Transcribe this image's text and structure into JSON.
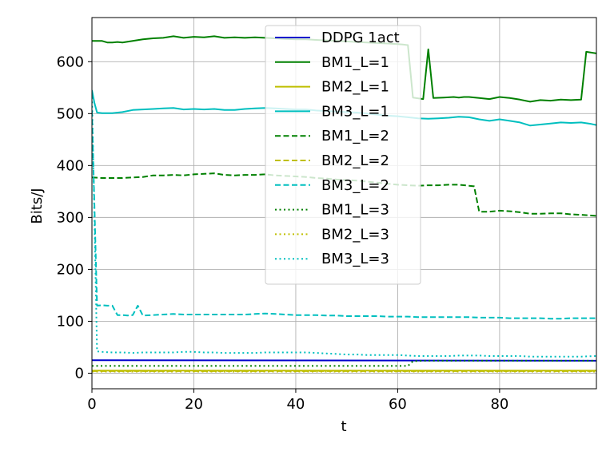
{
  "chart_data": {
    "type": "line",
    "title": "",
    "xlabel": "t",
    "ylabel": "Bits/J",
    "xlim": [
      0,
      99
    ],
    "ylim": [
      -30,
      685
    ],
    "xticks": [
      0,
      20,
      40,
      60,
      80
    ],
    "yticks": [
      0,
      100,
      200,
      300,
      400,
      500,
      600
    ],
    "grid": true,
    "legend_position": "upper center",
    "series": [
      {
        "name": "DDPG 1act",
        "color": "#0000cc",
        "style": "solid",
        "points": [
          [
            0,
            25
          ],
          [
            99,
            24
          ]
        ]
      },
      {
        "name": "BM1_L=1",
        "color": "#008000",
        "style": "solid",
        "points": [
          [
            0,
            640
          ],
          [
            1,
            640
          ],
          [
            2,
            640
          ],
          [
            3,
            637
          ],
          [
            4,
            637
          ],
          [
            5,
            638
          ],
          [
            6,
            637
          ],
          [
            8,
            640
          ],
          [
            10,
            643
          ],
          [
            12,
            645
          ],
          [
            14,
            646
          ],
          [
            16,
            649
          ],
          [
            18,
            646
          ],
          [
            20,
            648
          ],
          [
            22,
            647
          ],
          [
            24,
            649
          ],
          [
            26,
            646
          ],
          [
            28,
            647
          ],
          [
            30,
            646
          ],
          [
            32,
            647
          ],
          [
            34,
            646
          ],
          [
            36,
            645
          ],
          [
            38,
            644
          ],
          [
            40,
            643
          ],
          [
            42,
            643
          ],
          [
            44,
            642
          ],
          [
            46,
            641
          ],
          [
            48,
            640
          ],
          [
            50,
            639
          ],
          [
            52,
            638
          ],
          [
            54,
            637
          ],
          [
            56,
            636
          ],
          [
            58,
            635
          ],
          [
            60,
            634
          ],
          [
            61,
            633
          ],
          [
            62,
            632
          ],
          [
            63,
            531
          ],
          [
            65,
            528
          ],
          [
            66,
            624
          ],
          [
            67,
            530
          ],
          [
            69,
            531
          ],
          [
            71,
            532
          ],
          [
            72,
            531
          ],
          [
            73,
            532
          ],
          [
            74,
            532
          ],
          [
            76,
            530
          ],
          [
            78,
            528
          ],
          [
            80,
            532
          ],
          [
            82,
            530
          ],
          [
            84,
            527
          ],
          [
            86,
            523
          ],
          [
            88,
            526
          ],
          [
            90,
            525
          ],
          [
            92,
            527
          ],
          [
            94,
            526
          ],
          [
            96,
            527
          ],
          [
            97,
            619
          ],
          [
            99,
            616
          ]
        ]
      },
      {
        "name": "BM2_L=1",
        "color": "#bfbf00",
        "style": "solid",
        "points": [
          [
            0,
            5
          ],
          [
            99,
            5
          ]
        ]
      },
      {
        "name": "BM3_L=1",
        "color": "#00bfbf",
        "style": "solid",
        "points": [
          [
            0,
            545
          ],
          [
            0.5,
            520
          ],
          [
            1,
            502
          ],
          [
            2,
            501
          ],
          [
            4,
            501
          ],
          [
            6,
            503
          ],
          [
            8,
            507
          ],
          [
            10,
            508
          ],
          [
            12,
            509
          ],
          [
            14,
            510
          ],
          [
            16,
            511
          ],
          [
            18,
            508
          ],
          [
            20,
            509
          ],
          [
            22,
            508
          ],
          [
            24,
            509
          ],
          [
            26,
            507
          ],
          [
            28,
            507
          ],
          [
            30,
            509
          ],
          [
            32,
            510
          ],
          [
            34,
            511
          ],
          [
            36,
            510
          ],
          [
            38,
            509
          ],
          [
            40,
            508
          ],
          [
            42,
            508
          ],
          [
            44,
            506
          ],
          [
            46,
            505
          ],
          [
            48,
            504
          ],
          [
            50,
            503
          ],
          [
            52,
            502
          ],
          [
            54,
            500
          ],
          [
            56,
            498
          ],
          [
            58,
            496
          ],
          [
            60,
            495
          ],
          [
            62,
            493
          ],
          [
            64,
            491
          ],
          [
            66,
            490
          ],
          [
            68,
            491
          ],
          [
            70,
            492
          ],
          [
            72,
            494
          ],
          [
            74,
            493
          ],
          [
            76,
            489
          ],
          [
            78,
            486
          ],
          [
            80,
            489
          ],
          [
            82,
            486
          ],
          [
            84,
            483
          ],
          [
            86,
            477
          ],
          [
            88,
            479
          ],
          [
            90,
            481
          ],
          [
            92,
            483
          ],
          [
            94,
            482
          ],
          [
            96,
            483
          ],
          [
            98,
            480
          ],
          [
            99,
            478
          ]
        ]
      },
      {
        "name": "BM1_L=2",
        "color": "#008000",
        "style": "dashed",
        "points": [
          [
            0,
            377
          ],
          [
            2,
            376
          ],
          [
            4,
            376
          ],
          [
            6,
            376
          ],
          [
            8,
            377
          ],
          [
            10,
            378
          ],
          [
            12,
            381
          ],
          [
            14,
            381
          ],
          [
            16,
            382
          ],
          [
            18,
            381
          ],
          [
            20,
            383
          ],
          [
            22,
            384
          ],
          [
            24,
            385
          ],
          [
            26,
            382
          ],
          [
            28,
            381
          ],
          [
            30,
            382
          ],
          [
            32,
            382
          ],
          [
            34,
            383
          ],
          [
            36,
            381
          ],
          [
            38,
            380
          ],
          [
            40,
            379
          ],
          [
            42,
            378
          ],
          [
            44,
            376
          ],
          [
            46,
            375
          ],
          [
            48,
            373
          ],
          [
            50,
            372
          ],
          [
            52,
            371
          ],
          [
            54,
            369
          ],
          [
            56,
            367
          ],
          [
            58,
            365
          ],
          [
            60,
            363
          ],
          [
            62,
            362
          ],
          [
            64,
            361
          ],
          [
            66,
            362
          ],
          [
            68,
            362
          ],
          [
            70,
            363
          ],
          [
            72,
            363
          ],
          [
            74,
            361
          ],
          [
            75,
            360
          ],
          [
            76,
            311
          ],
          [
            78,
            311
          ],
          [
            80,
            313
          ],
          [
            82,
            312
          ],
          [
            84,
            310
          ],
          [
            86,
            307
          ],
          [
            88,
            307
          ],
          [
            90,
            308
          ],
          [
            92,
            308
          ],
          [
            94,
            306
          ],
          [
            96,
            305
          ],
          [
            99,
            303
          ]
        ]
      },
      {
        "name": "BM2_L=2",
        "color": "#bfbf00",
        "style": "dashed",
        "points": [
          [
            0,
            4
          ],
          [
            99,
            4
          ]
        ]
      },
      {
        "name": "BM3_L=2",
        "color": "#00bfbf",
        "style": "dashed",
        "points": [
          [
            0,
            505
          ],
          [
            1,
            130
          ],
          [
            2,
            131
          ],
          [
            3,
            130
          ],
          [
            4,
            130
          ],
          [
            5,
            112
          ],
          [
            6,
            112
          ],
          [
            7,
            111
          ],
          [
            8,
            112
          ],
          [
            9,
            130
          ],
          [
            10,
            111
          ],
          [
            12,
            112
          ],
          [
            14,
            113
          ],
          [
            16,
            114
          ],
          [
            18,
            113
          ],
          [
            20,
            113
          ],
          [
            22,
            113
          ],
          [
            24,
            113
          ],
          [
            26,
            113
          ],
          [
            28,
            113
          ],
          [
            30,
            113
          ],
          [
            32,
            114
          ],
          [
            34,
            115
          ],
          [
            36,
            114
          ],
          [
            38,
            113
          ],
          [
            40,
            112
          ],
          [
            42,
            112
          ],
          [
            44,
            112
          ],
          [
            46,
            111
          ],
          [
            48,
            111
          ],
          [
            50,
            110
          ],
          [
            52,
            110
          ],
          [
            54,
            110
          ],
          [
            56,
            110
          ],
          [
            58,
            109
          ],
          [
            60,
            109
          ],
          [
            62,
            109
          ],
          [
            64,
            108
          ],
          [
            66,
            108
          ],
          [
            68,
            108
          ],
          [
            70,
            108
          ],
          [
            72,
            108
          ],
          [
            74,
            108
          ],
          [
            76,
            107
          ],
          [
            78,
            107
          ],
          [
            80,
            107
          ],
          [
            82,
            106
          ],
          [
            84,
            106
          ],
          [
            86,
            106
          ],
          [
            88,
            106
          ],
          [
            90,
            105
          ],
          [
            92,
            105
          ],
          [
            94,
            106
          ],
          [
            96,
            106
          ],
          [
            99,
            106
          ]
        ]
      },
      {
        "name": "BM1_L=3",
        "color": "#008000",
        "style": "dotted",
        "points": [
          [
            0,
            14
          ],
          [
            10,
            14
          ],
          [
            20,
            14
          ],
          [
            30,
            14
          ],
          [
            40,
            14
          ],
          [
            50,
            14
          ],
          [
            55,
            14
          ],
          [
            58,
            14
          ],
          [
            61,
            14
          ],
          [
            62,
            14
          ],
          [
            63,
            23
          ],
          [
            65,
            24
          ],
          [
            70,
            24
          ],
          [
            80,
            24
          ],
          [
            90,
            24
          ],
          [
            99,
            24
          ]
        ]
      },
      {
        "name": "BM2_L=3",
        "color": "#bfbf00",
        "style": "dotted",
        "points": [
          [
            0,
            3
          ],
          [
            99,
            3
          ]
        ]
      },
      {
        "name": "BM3_L=3",
        "color": "#00bfbf",
        "style": "dotted",
        "points": [
          [
            0,
            540
          ],
          [
            1,
            42
          ],
          [
            2,
            41
          ],
          [
            4,
            40
          ],
          [
            6,
            40
          ],
          [
            8,
            39
          ],
          [
            10,
            40
          ],
          [
            12,
            40
          ],
          [
            14,
            40
          ],
          [
            16,
            40
          ],
          [
            18,
            41
          ],
          [
            20,
            41
          ],
          [
            22,
            40
          ],
          [
            24,
            40
          ],
          [
            26,
            39
          ],
          [
            28,
            39
          ],
          [
            30,
            39
          ],
          [
            32,
            39
          ],
          [
            34,
            40
          ],
          [
            36,
            40
          ],
          [
            38,
            40
          ],
          [
            40,
            40
          ],
          [
            42,
            40
          ],
          [
            44,
            39
          ],
          [
            46,
            38
          ],
          [
            48,
            37
          ],
          [
            50,
            36
          ],
          [
            52,
            36
          ],
          [
            54,
            35
          ],
          [
            56,
            35
          ],
          [
            58,
            35
          ],
          [
            60,
            35
          ],
          [
            62,
            34
          ],
          [
            64,
            33
          ],
          [
            66,
            33
          ],
          [
            68,
            33
          ],
          [
            70,
            33
          ],
          [
            72,
            34
          ],
          [
            74,
            34
          ],
          [
            76,
            34
          ],
          [
            78,
            33
          ],
          [
            80,
            33
          ],
          [
            82,
            33
          ],
          [
            84,
            33
          ],
          [
            86,
            32
          ],
          [
            88,
            32
          ],
          [
            90,
            32
          ],
          [
            92,
            32
          ],
          [
            94,
            32
          ],
          [
            96,
            32
          ],
          [
            99,
            33
          ]
        ]
      }
    ]
  }
}
